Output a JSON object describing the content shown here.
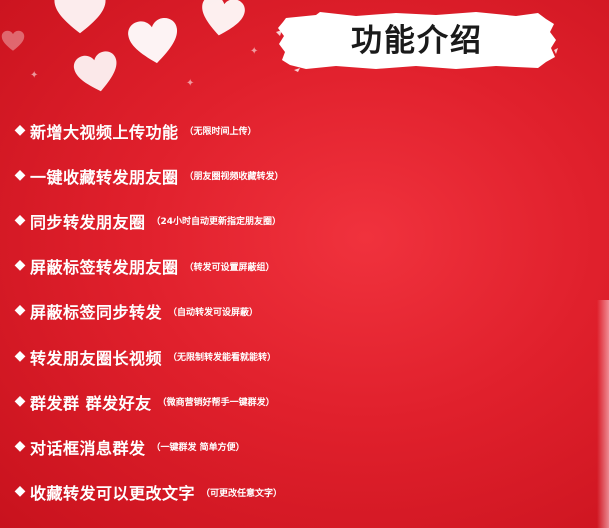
{
  "title": "功能介绍",
  "bullet_symbol": "◆",
  "colors": {
    "background": "#e0202c",
    "text": "#ffffff",
    "title_text": "#1a1a1a",
    "banner": "#ffffff",
    "heart": "#ffffff"
  },
  "features": [
    {
      "main": "新增大视频上传功能",
      "note": "（无限时间上传）"
    },
    {
      "main": "一键收藏转发朋友圈",
      "note": "（朋友圈视频收藏转发）"
    },
    {
      "main": "同步转发朋友圈",
      "note": "（24小时自动更新指定朋友圈）"
    },
    {
      "main": "屏蔽标签转发朋友圈",
      "note": "（转发可设置屏蔽组）"
    },
    {
      "main": "屏蔽标签同步转发",
      "note": "（自动转发可设屏蔽）"
    },
    {
      "main": "转发朋友圈长视频",
      "note": "（无限制转发能看就能转）"
    },
    {
      "main": "群发群 群发好友",
      "note": "（微商营销好帮手一键群发）"
    },
    {
      "main": "对话框消息群发",
      "note": "（一键群发 简单方便）"
    },
    {
      "main": "收藏转发可以更改文字",
      "note": "（可更改任意文字）"
    }
  ]
}
